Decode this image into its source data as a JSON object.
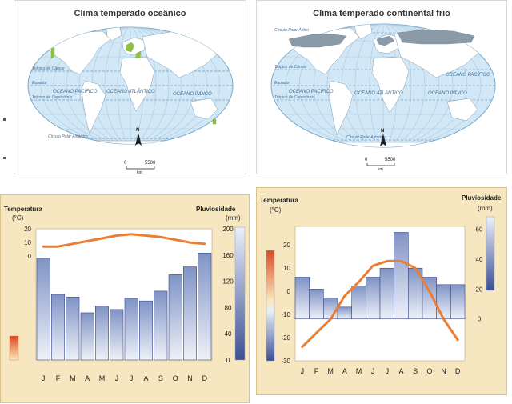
{
  "maps": [
    {
      "title": "Clima temperado oceânico",
      "labels": {
        "tropic_cancer": "Trópico de Câncer",
        "equator": "Equador",
        "tropic_capricorn": "Trópico de Capricórnio",
        "antarctic_circle": "Círculo Polar Antártico",
        "pacific": "OCEANO PACÍFICO",
        "atlantic": "OCEANO ATLÂNTICO",
        "indian": "OCEANO ÍNDICO"
      },
      "north": "N",
      "scale_zero": "0",
      "scale_value": "5500",
      "scale_unit": "km",
      "highlight_color": "#8fc442"
    },
    {
      "title": "Clima temperado continental frio",
      "labels": {
        "arctic_circle": "Círculo Polar Ártico",
        "tropic_cancer": "Trópico de Câncer",
        "equator": "Equador",
        "tropic_capricorn": "Trópico de Capricórnio",
        "antarctic_circle": "Círculo Polar Antártico",
        "pacific_north": "OCEANO PACÍFICO",
        "pacific_south": "OCEANO PACÍFICO",
        "atlantic": "OCEANO ATLÂNTICO",
        "indian": "OCEANO ÍNDICO"
      },
      "north": "N",
      "scale_zero": "0",
      "scale_value": "5500",
      "scale_unit": "km",
      "highlight_color": "#8a9aa6"
    }
  ],
  "chart_data": [
    {
      "type": "bar",
      "categories": [
        "J",
        "F",
        "M",
        "A",
        "M",
        "J",
        "J",
        "A",
        "S",
        "O",
        "N",
        "D"
      ],
      "left_axis_label": "Temperatura",
      "left_axis_unit": "(°C)",
      "right_axis_label": "Pluviosidade",
      "right_axis_unit": "(mm)",
      "series": [
        {
          "values": [
            155,
            100,
            96,
            72,
            82,
            77,
            94,
            90,
            105,
            130,
            142,
            163
          ]
        },
        {
          "values": [
            7,
            7,
            9,
            11,
            13,
            15,
            16,
            15,
            14,
            12,
            10,
            9
          ]
        }
      ],
      "precip_ticks": [
        "200",
        "160",
        "120",
        "80",
        "40",
        "0"
      ],
      "temp_ticks": [
        "20",
        "10",
        "0"
      ],
      "temp_range": [
        -76,
        20
      ],
      "precip_range": [
        0,
        200
      ]
    },
    {
      "type": "bar",
      "categories": [
        "J",
        "F",
        "M",
        "A",
        "M",
        "J",
        "J",
        "A",
        "S",
        "O",
        "N",
        "D"
      ],
      "left_axis_label": "Temperatura",
      "left_axis_unit": "(°C)",
      "right_axis_label": "Pluviosidade",
      "right_axis_unit": "(mm)",
      "series": [
        {
          "values": [
            28,
            20,
            14,
            8,
            22,
            28,
            34,
            58,
            34,
            28,
            23,
            23
          ]
        },
        {
          "values": [
            -24,
            -18,
            -12,
            -2,
            4,
            11,
            13,
            13,
            10,
            0,
            -12,
            -21
          ]
        }
      ],
      "precip_ticks": [
        "60",
        "40",
        "20",
        "0"
      ],
      "temp_ticks": [
        "20",
        "10",
        "0",
        "-10",
        "-20",
        "-30"
      ],
      "temp_range": [
        -30,
        28
      ],
      "precip_range": [
        -28,
        62
      ]
    }
  ]
}
